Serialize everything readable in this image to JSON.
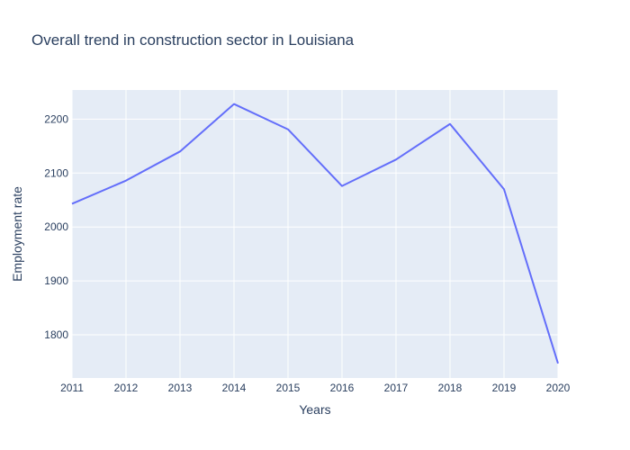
{
  "chart_data": {
    "type": "line",
    "title": "Overall trend in construction sector in Louisiana",
    "xlabel": "Years",
    "ylabel": "Employment rate",
    "x": [
      2011,
      2012,
      2013,
      2014,
      2015,
      2016,
      2017,
      2018,
      2019,
      2020
    ],
    "series": [
      {
        "values": [
          2043,
          2086,
          2140,
          2228,
          2181,
          2076,
          2125,
          2191,
          2070,
          1747
        ]
      }
    ],
    "xlim": [
      2011,
      2020
    ],
    "ylim": [
      1720,
      2254
    ],
    "yticks": [
      1800,
      1900,
      2000,
      2100,
      2200
    ],
    "grid": true,
    "colors": {
      "line": "#636efa",
      "plot_bg": "#e5ecf6",
      "grid": "#ffffff",
      "text": "#2a3f5f"
    }
  }
}
